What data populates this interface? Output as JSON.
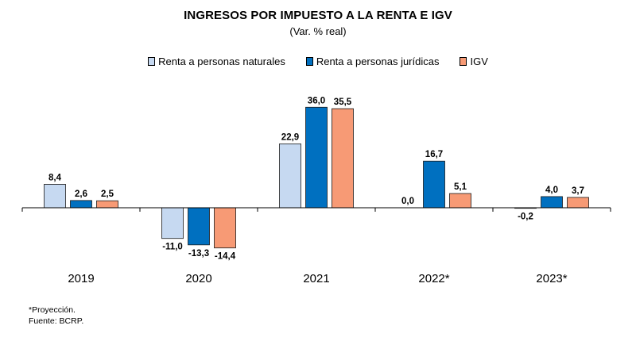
{
  "header": {
    "title": "INGRESOS POR IMPUESTO A LA RENTA E IGV",
    "subtitle": "(Var. % real)"
  },
  "notes": {
    "line1": "*Proyección.",
    "line2": "Fuente: BCRP."
  },
  "colors": {
    "naturales": "#c6d9f1",
    "juridicas": "#0070c0",
    "igv": "#f79a75"
  },
  "chart_data": {
    "type": "bar",
    "categories": [
      "2019",
      "2020",
      "2021",
      "2022*",
      "2023*"
    ],
    "series": [
      {
        "name": "Renta a personas naturales",
        "values": [
          8.4,
          -11.0,
          22.9,
          0.0,
          -0.2
        ],
        "labels": [
          "8,4",
          "-11,0",
          "22,9",
          "0,0",
          "-0,2"
        ]
      },
      {
        "name": "Renta a personas jurídicas",
        "values": [
          2.6,
          -13.3,
          36.0,
          16.7,
          4.0
        ],
        "labels": [
          "2,6",
          "-13,3",
          "36,0",
          "16,7",
          "4,0"
        ]
      },
      {
        "name": "IGV",
        "values": [
          2.5,
          -14.4,
          35.5,
          5.1,
          3.7
        ],
        "labels": [
          "2,5",
          "-14,4",
          "35,5",
          "5,1",
          "3,7"
        ]
      }
    ],
    "legend_position": "top",
    "grid": false
  }
}
